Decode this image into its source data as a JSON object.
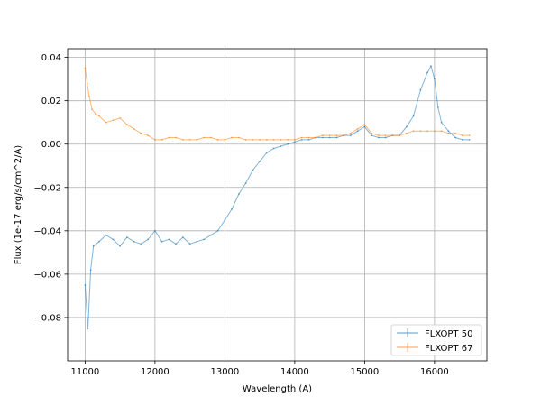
{
  "chart_data": {
    "type": "line",
    "title": "",
    "xlabel": "Wavelength (A)",
    "ylabel": "Flux (1e-17 erg/s/cm^2/A)",
    "xlim": [
      10750,
      16750
    ],
    "ylim": [
      -0.1,
      0.044
    ],
    "xticks": [
      11000,
      12000,
      13000,
      14000,
      15000,
      16000
    ],
    "yticks": [
      -0.08,
      -0.06,
      -0.04,
      -0.02,
      0.0,
      0.02,
      0.04
    ],
    "xtick_labels": [
      "11000",
      "12000",
      "13000",
      "14000",
      "15000",
      "16000"
    ],
    "ytick_labels": [
      "−0.08",
      "−0.06",
      "−0.04",
      "−0.02",
      "0.00",
      "0.02",
      "0.04"
    ],
    "grid": true,
    "legend_position": "lower-right",
    "series": [
      {
        "name": "FLXOPT 50",
        "color": "#1f77b4",
        "points": [
          [
            11000,
            -0.065
          ],
          [
            11040,
            -0.085
          ],
          [
            11080,
            -0.058
          ],
          [
            11120,
            -0.047
          ],
          [
            11200,
            -0.045
          ],
          [
            11300,
            -0.042
          ],
          [
            11400,
            -0.044
          ],
          [
            11500,
            -0.047
          ],
          [
            11600,
            -0.043
          ],
          [
            11700,
            -0.045
          ],
          [
            11800,
            -0.046
          ],
          [
            11900,
            -0.044
          ],
          [
            12000,
            -0.04
          ],
          [
            12100,
            -0.045
          ],
          [
            12200,
            -0.044
          ],
          [
            12300,
            -0.046
          ],
          [
            12400,
            -0.043
          ],
          [
            12500,
            -0.046
          ],
          [
            12600,
            -0.045
          ],
          [
            12700,
            -0.044
          ],
          [
            12800,
            -0.042
          ],
          [
            12900,
            -0.04
          ],
          [
            13000,
            -0.035
          ],
          [
            13100,
            -0.03
          ],
          [
            13200,
            -0.023
          ],
          [
            13300,
            -0.018
          ],
          [
            13400,
            -0.012
          ],
          [
            13500,
            -0.008
          ],
          [
            13600,
            -0.004
          ],
          [
            13700,
            -0.002
          ],
          [
            13800,
            -0.001
          ],
          [
            13900,
            0.0
          ],
          [
            14000,
            0.001
          ],
          [
            14100,
            0.002
          ],
          [
            14200,
            0.002
          ],
          [
            14300,
            0.003
          ],
          [
            14400,
            0.003
          ],
          [
            14500,
            0.003
          ],
          [
            14600,
            0.003
          ],
          [
            14700,
            0.004
          ],
          [
            14800,
            0.004
          ],
          [
            14900,
            0.006
          ],
          [
            15000,
            0.008
          ],
          [
            15100,
            0.004
          ],
          [
            15200,
            0.003
          ],
          [
            15300,
            0.003
          ],
          [
            15400,
            0.004
          ],
          [
            15500,
            0.004
          ],
          [
            15600,
            0.008
          ],
          [
            15700,
            0.013
          ],
          [
            15800,
            0.025
          ],
          [
            15900,
            0.033
          ],
          [
            15950,
            0.036
          ],
          [
            16000,
            0.03
          ],
          [
            16050,
            0.017
          ],
          [
            16100,
            0.01
          ],
          [
            16200,
            0.006
          ],
          [
            16300,
            0.003
          ],
          [
            16400,
            0.002
          ],
          [
            16500,
            0.002
          ]
        ]
      },
      {
        "name": "FLXOPT 67",
        "color": "#ff7f0e",
        "points": [
          [
            11000,
            0.035
          ],
          [
            11030,
            0.028
          ],
          [
            11060,
            0.022
          ],
          [
            11100,
            0.016
          ],
          [
            11150,
            0.014
          ],
          [
            11200,
            0.013
          ],
          [
            11300,
            0.01
          ],
          [
            11400,
            0.011
          ],
          [
            11500,
            0.012
          ],
          [
            11600,
            0.009
          ],
          [
            11700,
            0.007
          ],
          [
            11800,
            0.005
          ],
          [
            11900,
            0.004
          ],
          [
            12000,
            0.002
          ],
          [
            12100,
            0.002
          ],
          [
            12200,
            0.003
          ],
          [
            12300,
            0.003
          ],
          [
            12400,
            0.002
          ],
          [
            12500,
            0.002
          ],
          [
            12600,
            0.002
          ],
          [
            12700,
            0.003
          ],
          [
            12800,
            0.003
          ],
          [
            12900,
            0.002
          ],
          [
            13000,
            0.002
          ],
          [
            13100,
            0.003
          ],
          [
            13200,
            0.003
          ],
          [
            13300,
            0.002
          ],
          [
            13400,
            0.002
          ],
          [
            13500,
            0.002
          ],
          [
            13600,
            0.002
          ],
          [
            13700,
            0.002
          ],
          [
            13800,
            0.002
          ],
          [
            13900,
            0.002
          ],
          [
            14000,
            0.002
          ],
          [
            14100,
            0.003
          ],
          [
            14200,
            0.003
          ],
          [
            14300,
            0.003
          ],
          [
            14400,
            0.004
          ],
          [
            14500,
            0.004
          ],
          [
            14600,
            0.004
          ],
          [
            14700,
            0.004
          ],
          [
            14800,
            0.005
          ],
          [
            14900,
            0.007
          ],
          [
            15000,
            0.009
          ],
          [
            15100,
            0.005
          ],
          [
            15200,
            0.004
          ],
          [
            15300,
            0.004
          ],
          [
            15400,
            0.004
          ],
          [
            15500,
            0.004
          ],
          [
            15600,
            0.005
          ],
          [
            15700,
            0.006
          ],
          [
            15800,
            0.006
          ],
          [
            15900,
            0.006
          ],
          [
            16000,
            0.006
          ],
          [
            16100,
            0.006
          ],
          [
            16200,
            0.005
          ],
          [
            16300,
            0.005
          ],
          [
            16400,
            0.004
          ],
          [
            16500,
            0.004
          ]
        ]
      }
    ]
  }
}
